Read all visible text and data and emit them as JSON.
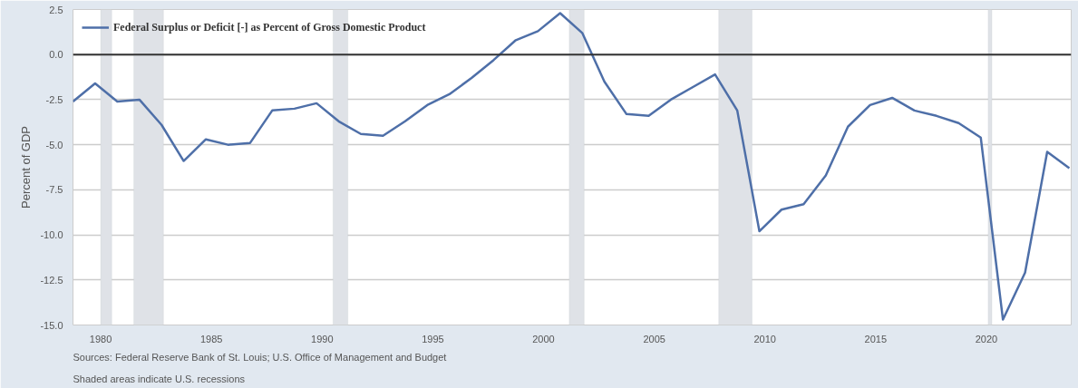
{
  "chart_data": {
    "type": "line",
    "ylabel": "Percent of GDP",
    "x": [
      "1978-10-01",
      "1979-10-01",
      "1980-10-01",
      "1981-10-01",
      "1982-10-01",
      "1983-10-01",
      "1984-10-01",
      "1985-10-01",
      "1986-10-01",
      "1987-10-01",
      "1988-10-01",
      "1989-10-01",
      "1990-10-01",
      "1991-10-01",
      "1992-10-01",
      "1993-10-01",
      "1994-10-01",
      "1995-10-01",
      "1996-10-01",
      "1997-10-01",
      "1998-10-01",
      "1999-10-01",
      "2000-10-01",
      "2001-10-01",
      "2002-10-01",
      "2003-10-01",
      "2004-10-01",
      "2005-10-01",
      "2006-10-01",
      "2007-10-01",
      "2008-10-01",
      "2009-10-01",
      "2010-10-01",
      "2011-10-01",
      "2012-10-01",
      "2013-10-01",
      "2014-10-01",
      "2015-10-01",
      "2016-10-01",
      "2017-10-01",
      "2018-10-01",
      "2019-10-01",
      "2020-10-01",
      "2021-10-01",
      "2022-10-01",
      "2023-10-01"
    ],
    "series": [
      {
        "name": "Federal Surplus or Deficit [-] as Percent of Gross Domestic Product",
        "color": "#4e6fa8",
        "values": [
          -2.6,
          -1.6,
          -2.6,
          -2.5,
          -3.9,
          -5.9,
          -4.7,
          -5.0,
          -4.9,
          -3.1,
          -3.0,
          -2.7,
          -3.7,
          -4.4,
          -4.5,
          -3.7,
          -2.8,
          -2.2,
          -1.3,
          -0.3,
          0.8,
          1.3,
          2.3,
          1.2,
          -1.5,
          -3.3,
          -3.4,
          -2.5,
          -1.8,
          -1.1,
          -3.1,
          -9.8,
          -8.6,
          -8.3,
          -6.7,
          -4.0,
          -2.8,
          -2.4,
          -3.1,
          -3.4,
          -3.8,
          -4.6,
          -14.7,
          -12.1,
          -5.4,
          -6.3
        ]
      }
    ],
    "xlim": [
      "1978-10-01",
      "2023-11-01"
    ],
    "xticks": [
      "1980",
      "1985",
      "1990",
      "1995",
      "2000",
      "2005",
      "2010",
      "2015",
      "2020"
    ],
    "ylim": [
      -15,
      2.5
    ],
    "yticks": [
      {
        "value": 2.5,
        "label": "2.5"
      },
      {
        "value": 0,
        "label": "0.0"
      },
      {
        "value": -2.5,
        "label": "-2.5"
      },
      {
        "value": -5,
        "label": "-5.0"
      },
      {
        "value": -7.5,
        "label": "-7.5"
      },
      {
        "value": -10,
        "label": "-10.0"
      },
      {
        "value": -12.5,
        "label": "-12.5"
      },
      {
        "value": -15,
        "label": "-15.0"
      }
    ],
    "grid": "y",
    "legend": "top left",
    "line_style": "solid",
    "ref_lines": [
      {
        "axis": "y",
        "value": 0,
        "color": "#333333"
      }
    ],
    "bands": [
      {
        "axis": "x",
        "from": "1980-01-01",
        "to": "1980-07-01",
        "color": "#dfe2e7"
      },
      {
        "axis": "x",
        "from": "1981-07-01",
        "to": "1982-11-01",
        "color": "#dfe2e7"
      },
      {
        "axis": "x",
        "from": "1990-07-01",
        "to": "1991-03-01",
        "color": "#dfe2e7"
      },
      {
        "axis": "x",
        "from": "2001-03-01",
        "to": "2001-11-01",
        "color": "#dfe2e7"
      },
      {
        "axis": "x",
        "from": "2007-12-01",
        "to": "2009-06-01",
        "color": "#dfe2e7"
      },
      {
        "axis": "x",
        "from": "2020-02-01",
        "to": "2020-04-01",
        "color": "#dfe2e7"
      }
    ],
    "annotations": [
      "Sources: Federal Reserve Bank of St. Louis; U.S. Office of Management and Budget",
      "Shaded areas indicate U.S. recessions"
    ]
  }
}
